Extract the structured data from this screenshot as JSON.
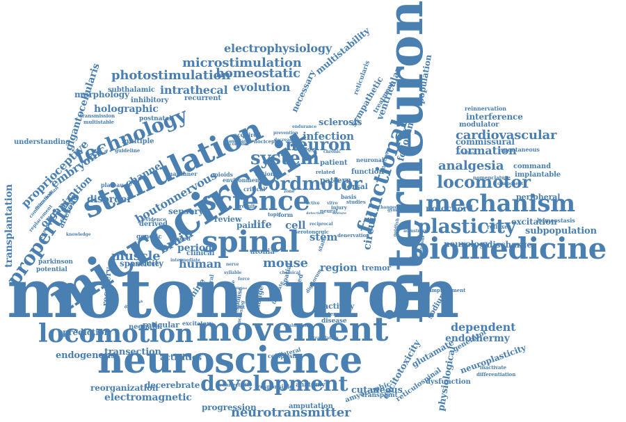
{
  "cloud": {
    "color": "#4a7fb1",
    "words": [
      {
        "text": "motoneuron"
      },
      {
        "text": "microcircuit"
      },
      {
        "text": "interneuron"
      },
      {
        "text": "neuroscience"
      },
      {
        "text": "movement"
      },
      {
        "text": "spinal"
      },
      {
        "text": "stimulation"
      },
      {
        "text": "biomedicine"
      },
      {
        "text": "mechanism"
      },
      {
        "text": "locomotion"
      },
      {
        "text": "development"
      },
      {
        "text": "science"
      },
      {
        "text": "functional"
      },
      {
        "text": "plasticity"
      },
      {
        "text": "technology"
      },
      {
        "text": "cordmotor"
      },
      {
        "text": "properties"
      },
      {
        "text": "system"
      },
      {
        "text": "locomotor"
      },
      {
        "text": "neuron"
      },
      {
        "text": "microstimulation"
      },
      {
        "text": "electrophysiology"
      },
      {
        "text": "photostimulation"
      },
      {
        "text": "homeostatic"
      },
      {
        "text": "intrathecal"
      },
      {
        "text": "evolution"
      },
      {
        "text": "neurotransmitter"
      },
      {
        "text": "electromagnetic"
      },
      {
        "text": "analgesia"
      },
      {
        "text": "cardiovascular"
      },
      {
        "text": "formation"
      },
      {
        "text": "dependent"
      },
      {
        "text": "endothermy"
      },
      {
        "text": "neuroplasticity"
      },
      {
        "text": "excitotoxicity"
      },
      {
        "text": "gigantocellularis"
      },
      {
        "text": "proprioceptive"
      },
      {
        "text": "transplantation"
      },
      {
        "text": "mouse"
      },
      {
        "text": "muscle"
      },
      {
        "text": "human"
      },
      {
        "text": "brain"
      },
      {
        "text": "boutonnervous"
      },
      {
        "text": "embryonic"
      },
      {
        "text": "organization"
      },
      {
        "text": "channel"
      },
      {
        "text": "disorder"
      },
      {
        "text": "sensory"
      },
      {
        "text": "spasticity"
      },
      {
        "text": "infection"
      },
      {
        "text": "sclerosis"
      },
      {
        "text": "sympathetic"
      },
      {
        "text": "multistability"
      },
      {
        "text": "holographic"
      },
      {
        "text": "morphology"
      },
      {
        "text": "subthalamic"
      },
      {
        "text": "inhibitory"
      },
      {
        "text": "recurrent"
      },
      {
        "text": "necessary"
      },
      {
        "text": "reticularis"
      },
      {
        "text": "treatment"
      },
      {
        "text": "ventricular"
      },
      {
        "text": "following"
      },
      {
        "text": "population"
      },
      {
        "text": "interference"
      },
      {
        "text": "modulator"
      },
      {
        "text": "commissural"
      },
      {
        "text": "reinnervation"
      },
      {
        "text": "spontaneous"
      },
      {
        "text": "command"
      },
      {
        "text": "implantable"
      },
      {
        "text": "peripheral"
      },
      {
        "text": "notochord"
      },
      {
        "text": "excitation"
      },
      {
        "text": "homeostasis"
      },
      {
        "text": "subpopulation"
      },
      {
        "text": "reflexes"
      },
      {
        "text": "neurology"
      },
      {
        "text": "discharge"
      },
      {
        "text": "region"
      },
      {
        "text": "tremor"
      },
      {
        "text": "circuit"
      },
      {
        "text": "stem"
      },
      {
        "text": "cell"
      },
      {
        "text": "life"
      },
      {
        "text": "pain"
      },
      {
        "text": "review"
      },
      {
        "text": "period"
      },
      {
        "text": "clinical"
      },
      {
        "text": "atonia"
      },
      {
        "text": "recovery"
      },
      {
        "text": "machine"
      },
      {
        "text": "prediction"
      },
      {
        "text": "neonatal"
      },
      {
        "text": "reticular"
      },
      {
        "text": "endogenous"
      },
      {
        "text": "transection"
      },
      {
        "text": "activities"
      },
      {
        "text": "reorganization"
      },
      {
        "text": "decerebrate"
      },
      {
        "text": "progression"
      },
      {
        "text": "amputation"
      },
      {
        "text": "amyotrophic"
      },
      {
        "text": "cutaneous"
      },
      {
        "text": "transplant"
      },
      {
        "text": "reticulospinal"
      },
      {
        "text": "dysfunction"
      },
      {
        "text": "physiological"
      },
      {
        "text": "glutamate"
      },
      {
        "text": "generator"
      },
      {
        "text": "sodium"
      },
      {
        "text": "activity"
      },
      {
        "text": "extensor"
      },
      {
        "text": "disease"
      },
      {
        "text": "anatomy"
      },
      {
        "text": "responsible"
      },
      {
        "text": "connectivity"
      },
      {
        "text": "bilateral"
      },
      {
        "text": "comprising"
      },
      {
        "text": "response"
      },
      {
        "text": "change"
      },
      {
        "text": "delayed"
      },
      {
        "text": "spatial"
      },
      {
        "text": "understanding"
      },
      {
        "text": "multiple"
      },
      {
        "text": "guideline"
      },
      {
        "text": "postnatal"
      },
      {
        "text": "multistable"
      },
      {
        "text": "transmission"
      },
      {
        "text": "mauthner"
      },
      {
        "text": "plateau"
      },
      {
        "text": "afferent"
      },
      {
        "text": "cerebral"
      },
      {
        "text": "combination"
      },
      {
        "text": "mammalian"
      },
      {
        "text": "replacement"
      },
      {
        "text": "parkinson"
      },
      {
        "text": "potential"
      },
      {
        "text": "practice"
      },
      {
        "text": "genetic"
      },
      {
        "text": "derived"
      },
      {
        "text": "caged"
      },
      {
        "text": "evidence"
      },
      {
        "text": "result"
      },
      {
        "text": "critical"
      },
      {
        "text": "opioids"
      },
      {
        "text": "acquired"
      },
      {
        "text": "canadian"
      },
      {
        "text": "prevention"
      },
      {
        "text": "decrease"
      },
      {
        "text": "biology"
      },
      {
        "text": "action"
      },
      {
        "text": "related"
      },
      {
        "text": "function"
      },
      {
        "text": "pattern"
      },
      {
        "text": "patient"
      },
      {
        "text": "neuronal"
      },
      {
        "text": "dorsal"
      },
      {
        "text": "form"
      },
      {
        "text": "basis"
      },
      {
        "text": "injury"
      },
      {
        "text": "studies"
      },
      {
        "text": "neural"
      },
      {
        "text": "topic"
      },
      {
        "text": "state"
      },
      {
        "text": "control"
      },
      {
        "text": "nomenclature"
      },
      {
        "text": "component"
      },
      {
        "text": "inactivate"
      },
      {
        "text": "differentiation"
      },
      {
        "text": "improvement"
      },
      {
        "text": "expression"
      },
      {
        "text": "adjustment"
      },
      {
        "text": "unchanged"
      },
      {
        "text": "gymnotus"
      },
      {
        "text": "goldfish"
      },
      {
        "text": "dystonia"
      },
      {
        "text": "knowledge"
      },
      {
        "text": "intermediate"
      },
      {
        "text": "excitatory"
      },
      {
        "text": "evaluation"
      },
      {
        "text": "translation"
      },
      {
        "text": "processing"
      },
      {
        "text": "facilitate"
      },
      {
        "text": "digitorum"
      },
      {
        "text": "syllable"
      },
      {
        "text": "nerve"
      },
      {
        "text": "force"
      },
      {
        "text": "central"
      },
      {
        "text": "spindle"
      },
      {
        "text": "rodent"
      },
      {
        "text": "medicine"
      },
      {
        "text": "mature"
      },
      {
        "text": "vitro"
      },
      {
        "text": "active"
      },
      {
        "text": "zone"
      },
      {
        "text": "chronic"
      },
      {
        "text": "nociceptor"
      },
      {
        "text": "endurance"
      },
      {
        "text": "denervation"
      },
      {
        "text": "chemical"
      },
      {
        "text": "reflecting"
      },
      {
        "text": "complex"
      },
      {
        "text": "detection"
      },
      {
        "text": "serotonergic"
      },
      {
        "text": "environment"
      },
      {
        "text": "reciprocal"
      },
      {
        "text": "pathology"
      },
      {
        "text": "homolog"
      },
      {
        "text": "frequency"
      },
      {
        "text": "emergence"
      },
      {
        "text": "regulator"
      },
      {
        "text": "palsy"
      },
      {
        "text": "input"
      },
      {
        "text": "stability"
      }
    ]
  }
}
